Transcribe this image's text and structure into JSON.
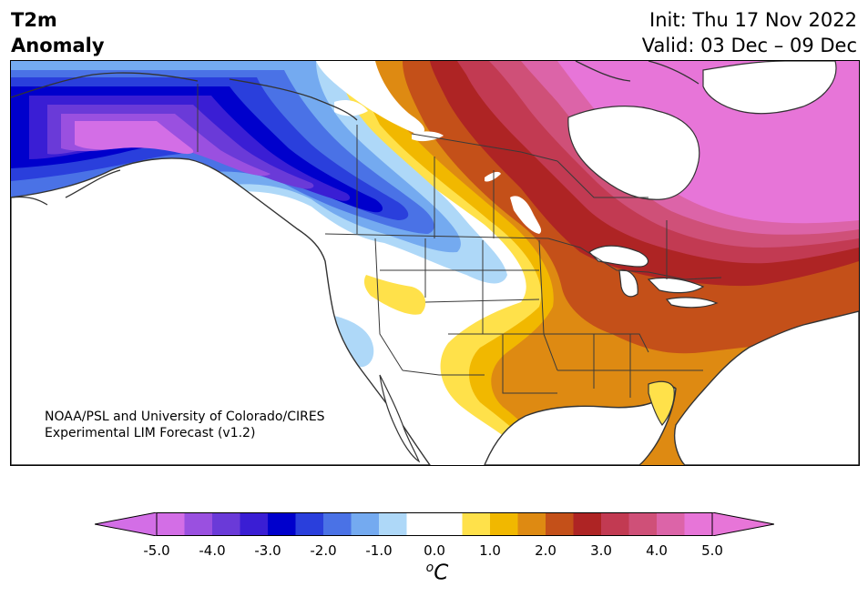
{
  "title": {
    "left_line1": "T2m",
    "left_line2": "Anomaly",
    "right_line1": "Init: Thu 17 Nov 2022",
    "right_line2": "Valid: 03 Dec – 09 Dec"
  },
  "credit": {
    "line1": "NOAA/PSL and University of Colorado/CIRES",
    "line2": "Experimental LIM Forecast (v1.2)"
  },
  "colorbar": {
    "unit_sup": "o",
    "unit": "C",
    "ticks": [
      "-5.0",
      "-4.0",
      "-3.0",
      "-2.0",
      "-1.0",
      "0.0",
      "1.0",
      "2.0",
      "3.0",
      "4.0",
      "5.0"
    ],
    "tick_values": [
      -5,
      -4,
      -3,
      -2,
      -1,
      0,
      1,
      2,
      3,
      4,
      5
    ],
    "range": [
      -5,
      5
    ],
    "bins": [
      {
        "lo": -5.0,
        "hi": -4.5,
        "color": "#d36ee6"
      },
      {
        "lo": -4.5,
        "hi": -4.0,
        "color": "#9a50e0"
      },
      {
        "lo": -4.0,
        "hi": -3.5,
        "color": "#6a3ad8"
      },
      {
        "lo": -3.5,
        "hi": -3.0,
        "color": "#3a1ed4"
      },
      {
        "lo": -3.0,
        "hi": -2.5,
        "color": "#0000cc"
      },
      {
        "lo": -2.5,
        "hi": -2.0,
        "color": "#2a3fdc"
      },
      {
        "lo": -2.0,
        "hi": -1.5,
        "color": "#4a72e6"
      },
      {
        "lo": -1.5,
        "hi": -1.0,
        "color": "#74aaf0"
      },
      {
        "lo": -1.0,
        "hi": -0.5,
        "color": "#aed8f8"
      },
      {
        "lo": -0.5,
        "hi": 0.5,
        "color": "#ffffff"
      },
      {
        "lo": 0.5,
        "hi": 1.0,
        "color": "#ffe14a"
      },
      {
        "lo": 1.0,
        "hi": 1.5,
        "color": "#f1b800"
      },
      {
        "lo": 1.5,
        "hi": 2.0,
        "color": "#de8a12"
      },
      {
        "lo": 2.0,
        "hi": 2.5,
        "color": "#c45019"
      },
      {
        "lo": 2.5,
        "hi": 3.0,
        "color": "#ae2424"
      },
      {
        "lo": 3.0,
        "hi": 3.5,
        "color": "#c23a52"
      },
      {
        "lo": 3.5,
        "hi": 4.0,
        "color": "#cf5078"
      },
      {
        "lo": 4.0,
        "hi": 4.5,
        "color": "#dc64a8"
      },
      {
        "lo": 4.5,
        "hi": 5.0,
        "color": "#e775d8"
      }
    ],
    "under_color": "#d36ee6",
    "over_color": "#e775d8"
  }
}
